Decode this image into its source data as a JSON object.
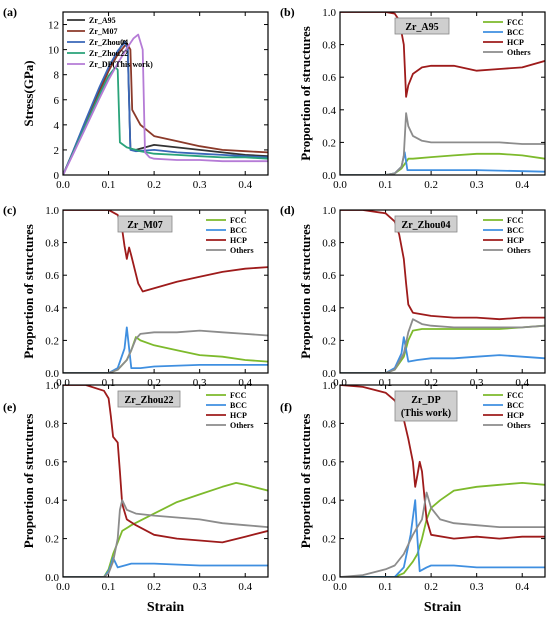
{
  "colors": {
    "FCC": "#7dba2c",
    "BCC": "#3f8fe0",
    "HCP": "#9e1b1b",
    "Others": "#8c8c8c",
    "Zr_A95": "#333333",
    "Zr_M07": "#8b3a2a",
    "Zr_Zhou04": "#3a67b8",
    "Zr_Zhou22": "#2aa37a",
    "Zr_DP": "#b57bd6"
  },
  "chart_data": [
    {
      "panel": "(a)",
      "type": "line",
      "xlabel": "",
      "ylabel": "Stress(GPa)",
      "xlim": [
        0,
        0.45
      ],
      "ylim": [
        0,
        13
      ],
      "xticks": [
        "0.0",
        "0.1",
        "0.2",
        "0.3",
        "0.4"
      ],
      "yticks": [
        "0",
        "2",
        "4",
        "6",
        "8",
        "10",
        "12"
      ],
      "legend_position": "top-left",
      "series": [
        {
          "name": "Zr_A95",
          "color_key": "Zr_A95",
          "x": [
            0,
            0.02,
            0.05,
            0.08,
            0.1,
            0.12,
            0.135,
            0.142,
            0.148,
            0.16,
            0.2,
            0.25,
            0.3,
            0.35,
            0.4,
            0.45
          ],
          "y": [
            0,
            1.7,
            4.3,
            6.8,
            8.4,
            9.8,
            10.7,
            10.2,
            2.1,
            2.0,
            2.4,
            2.2,
            2.0,
            1.8,
            1.6,
            1.5
          ]
        },
        {
          "name": "Zr_M07",
          "color_key": "Zr_M07",
          "x": [
            0,
            0.02,
            0.05,
            0.08,
            0.1,
            0.12,
            0.14,
            0.148,
            0.152,
            0.17,
            0.2,
            0.25,
            0.3,
            0.35,
            0.4,
            0.45
          ],
          "y": [
            0,
            1.6,
            4.1,
            6.6,
            8.3,
            9.6,
            10.5,
            10.0,
            5.2,
            4.0,
            3.1,
            2.7,
            2.3,
            2.0,
            1.9,
            1.8
          ]
        },
        {
          "name": "Zr_Zhou04",
          "color_key": "Zr_Zhou04",
          "x": [
            0,
            0.02,
            0.05,
            0.08,
            0.1,
            0.12,
            0.136,
            0.142,
            0.148,
            0.16,
            0.2,
            0.25,
            0.3,
            0.35,
            0.4,
            0.45
          ],
          "y": [
            0,
            1.7,
            4.4,
            7.0,
            8.6,
            9.9,
            10.6,
            10.0,
            2.0,
            1.9,
            2.0,
            1.8,
            1.7,
            1.6,
            1.5,
            1.4
          ]
        },
        {
          "name": "Zr_Zhou22",
          "color_key": "Zr_Zhou22",
          "x": [
            0,
            0.02,
            0.05,
            0.08,
            0.1,
            0.115,
            0.12,
            0.125,
            0.14,
            0.17,
            0.2,
            0.25,
            0.3,
            0.35,
            0.4,
            0.45
          ],
          "y": [
            0,
            1.6,
            4.0,
            6.4,
            7.9,
            8.6,
            8.4,
            2.6,
            2.2,
            1.9,
            1.7,
            1.6,
            1.5,
            1.4,
            1.4,
            1.3
          ]
        },
        {
          "name": "Zr_DP(This work)",
          "color_key": "Zr_DP",
          "x": [
            0,
            0.02,
            0.05,
            0.08,
            0.1,
            0.12,
            0.14,
            0.155,
            0.165,
            0.175,
            0.18,
            0.19,
            0.2,
            0.25,
            0.3,
            0.35,
            0.4,
            0.45
          ],
          "y": [
            0,
            1.5,
            3.8,
            6.1,
            7.6,
            8.9,
            10.1,
            10.9,
            11.2,
            10.0,
            1.8,
            1.4,
            1.3,
            1.2,
            1.2,
            1.1,
            1.1,
            1.1
          ]
        }
      ]
    },
    {
      "panel": "(b)",
      "type": "line",
      "badge": "Zr_A95",
      "xlabel": "",
      "ylabel": "Proportion of structures",
      "xlim": [
        0,
        0.45
      ],
      "ylim": [
        0,
        1.0
      ],
      "xticks": [
        "0.0",
        "0.1",
        "0.2",
        "0.3",
        "0.4"
      ],
      "yticks": [
        "0.0",
        "0.2",
        "0.4",
        "0.6",
        "0.8",
        "1.0"
      ],
      "legend_position": "top-right",
      "series": [
        {
          "name": "FCC",
          "color_key": "FCC",
          "x": [
            0,
            0.1,
            0.12,
            0.135,
            0.145,
            0.15,
            0.16,
            0.2,
            0.25,
            0.3,
            0.35,
            0.4,
            0.45
          ],
          "y": [
            0,
            0,
            0.01,
            0.04,
            0.08,
            0.1,
            0.1,
            0.11,
            0.12,
            0.13,
            0.13,
            0.12,
            0.1
          ]
        },
        {
          "name": "BCC",
          "color_key": "BCC",
          "x": [
            0,
            0.1,
            0.12,
            0.135,
            0.142,
            0.148,
            0.16,
            0.2,
            0.3,
            0.45
          ],
          "y": [
            0,
            0,
            0.01,
            0.05,
            0.14,
            0.03,
            0.03,
            0.03,
            0.03,
            0.02
          ]
        },
        {
          "name": "HCP",
          "color_key": "HCP",
          "x": [
            0,
            0.1,
            0.12,
            0.13,
            0.14,
            0.145,
            0.15,
            0.16,
            0.18,
            0.2,
            0.25,
            0.3,
            0.35,
            0.4,
            0.45
          ],
          "y": [
            1.0,
            1.0,
            0.99,
            0.95,
            0.8,
            0.48,
            0.55,
            0.62,
            0.66,
            0.67,
            0.67,
            0.64,
            0.65,
            0.66,
            0.7
          ]
        },
        {
          "name": "Others",
          "color_key": "Others",
          "x": [
            0,
            0.1,
            0.12,
            0.135,
            0.14,
            0.145,
            0.15,
            0.16,
            0.18,
            0.2,
            0.25,
            0.3,
            0.35,
            0.4,
            0.45
          ],
          "y": [
            0,
            0,
            0.01,
            0.05,
            0.12,
            0.38,
            0.3,
            0.24,
            0.21,
            0.2,
            0.2,
            0.2,
            0.2,
            0.19,
            0.19
          ]
        }
      ]
    },
    {
      "panel": "(c)",
      "type": "line",
      "badge": "Zr_M07",
      "xlabel": "",
      "ylabel": "Proportion of structures",
      "xlim": [
        0,
        0.45
      ],
      "ylim": [
        0,
        1.0
      ],
      "xticks": [
        "0.0",
        "0.1",
        "0.2",
        "0.3",
        "0.4"
      ],
      "yticks": [
        "0.0",
        "0.2",
        "0.4",
        "0.6",
        "0.8",
        "1.0"
      ],
      "legend_position": "top-right",
      "series": [
        {
          "name": "FCC",
          "color_key": "FCC",
          "x": [
            0,
            0.1,
            0.12,
            0.14,
            0.15,
            0.16,
            0.17,
            0.2,
            0.25,
            0.3,
            0.35,
            0.4,
            0.45
          ],
          "y": [
            0,
            0,
            0.02,
            0.08,
            0.14,
            0.22,
            0.2,
            0.17,
            0.14,
            0.11,
            0.1,
            0.08,
            0.07
          ]
        },
        {
          "name": "BCC",
          "color_key": "BCC",
          "x": [
            0,
            0.1,
            0.12,
            0.135,
            0.14,
            0.15,
            0.17,
            0.2,
            0.3,
            0.45
          ],
          "y": [
            0,
            0,
            0.03,
            0.15,
            0.28,
            0.03,
            0.03,
            0.04,
            0.05,
            0.05
          ]
        },
        {
          "name": "HCP",
          "color_key": "HCP",
          "x": [
            0,
            0.1,
            0.12,
            0.13,
            0.135,
            0.14,
            0.145,
            0.15,
            0.165,
            0.175,
            0.2,
            0.25,
            0.3,
            0.35,
            0.4,
            0.45
          ],
          "y": [
            1.0,
            1.0,
            0.97,
            0.88,
            0.78,
            0.7,
            0.77,
            0.72,
            0.55,
            0.5,
            0.52,
            0.56,
            0.59,
            0.62,
            0.64,
            0.65
          ]
        },
        {
          "name": "Others",
          "color_key": "Others",
          "x": [
            0,
            0.1,
            0.12,
            0.14,
            0.15,
            0.16,
            0.17,
            0.2,
            0.25,
            0.3,
            0.35,
            0.4,
            0.45
          ],
          "y": [
            0,
            0,
            0.02,
            0.08,
            0.14,
            0.21,
            0.24,
            0.25,
            0.25,
            0.26,
            0.25,
            0.24,
            0.23
          ]
        }
      ]
    },
    {
      "panel": "(d)",
      "type": "line",
      "badge": "Zr_Zhou04",
      "xlabel": "",
      "ylabel": "Proportion of structures",
      "xlim": [
        0,
        0.45
      ],
      "ylim": [
        0,
        1.0
      ],
      "xticks": [
        "0.0",
        "0.1",
        "0.2",
        "0.3",
        "0.4"
      ],
      "yticks": [
        "0.0",
        "0.2",
        "0.4",
        "0.6",
        "0.8",
        "1.0"
      ],
      "legend_position": "top-right",
      "series": [
        {
          "name": "FCC",
          "color_key": "FCC",
          "x": [
            0,
            0.1,
            0.12,
            0.14,
            0.15,
            0.16,
            0.18,
            0.2,
            0.25,
            0.3,
            0.35,
            0.4,
            0.45
          ],
          "y": [
            0,
            0,
            0.02,
            0.1,
            0.2,
            0.26,
            0.27,
            0.27,
            0.27,
            0.27,
            0.27,
            0.28,
            0.29
          ]
        },
        {
          "name": "BCC",
          "color_key": "BCC",
          "x": [
            0,
            0.1,
            0.12,
            0.135,
            0.14,
            0.15,
            0.17,
            0.2,
            0.25,
            0.3,
            0.35,
            0.4,
            0.45
          ],
          "y": [
            0,
            0,
            0.03,
            0.12,
            0.22,
            0.07,
            0.08,
            0.09,
            0.09,
            0.1,
            0.11,
            0.1,
            0.09
          ]
        },
        {
          "name": "HCP",
          "color_key": "HCP",
          "x": [
            0,
            0.05,
            0.1,
            0.12,
            0.13,
            0.14,
            0.145,
            0.15,
            0.16,
            0.2,
            0.25,
            0.3,
            0.35,
            0.4,
            0.45
          ],
          "y": [
            1.0,
            1.0,
            0.98,
            0.93,
            0.85,
            0.7,
            0.55,
            0.42,
            0.37,
            0.35,
            0.34,
            0.34,
            0.33,
            0.34,
            0.34
          ]
        },
        {
          "name": "Others",
          "color_key": "Others",
          "x": [
            0,
            0.1,
            0.12,
            0.14,
            0.15,
            0.16,
            0.18,
            0.2,
            0.25,
            0.3,
            0.35,
            0.4,
            0.45
          ],
          "y": [
            0,
            0,
            0.02,
            0.12,
            0.25,
            0.33,
            0.3,
            0.29,
            0.28,
            0.28,
            0.28,
            0.28,
            0.29
          ]
        }
      ]
    },
    {
      "panel": "(e)",
      "type": "line",
      "badge": "Zr_Zhou22",
      "xlabel": "Strain",
      "ylabel": "Proportion of structures",
      "xlim": [
        0,
        0.45
      ],
      "ylim": [
        0,
        1.0
      ],
      "xticks": [
        "0.0",
        "0.1",
        "0.2",
        "0.3",
        "0.4"
      ],
      "yticks": [
        "0.0",
        "0.2",
        "0.4",
        "0.6",
        "0.8",
        "1.0"
      ],
      "legend_position": "top-right",
      "series": [
        {
          "name": "FCC",
          "color_key": "FCC",
          "x": [
            0,
            0.09,
            0.1,
            0.11,
            0.12,
            0.13,
            0.15,
            0.2,
            0.25,
            0.3,
            0.35,
            0.38,
            0.4,
            0.45
          ],
          "y": [
            0,
            0,
            0.04,
            0.12,
            0.18,
            0.24,
            0.27,
            0.33,
            0.39,
            0.43,
            0.47,
            0.49,
            0.48,
            0.45
          ]
        },
        {
          "name": "BCC",
          "color_key": "BCC",
          "x": [
            0,
            0.09,
            0.1,
            0.105,
            0.11,
            0.12,
            0.15,
            0.2,
            0.3,
            0.4,
            0.45
          ],
          "y": [
            0,
            0,
            0.03,
            0.06,
            0.1,
            0.05,
            0.07,
            0.07,
            0.06,
            0.06,
            0.06
          ]
        },
        {
          "name": "HCP",
          "color_key": "HCP",
          "x": [
            0,
            0.05,
            0.09,
            0.1,
            0.105,
            0.11,
            0.12,
            0.125,
            0.13,
            0.14,
            0.16,
            0.2,
            0.25,
            0.3,
            0.35,
            0.4,
            0.45
          ],
          "y": [
            1.0,
            1.0,
            0.97,
            0.93,
            0.84,
            0.73,
            0.7,
            0.55,
            0.38,
            0.3,
            0.27,
            0.22,
            0.2,
            0.19,
            0.18,
            0.21,
            0.24
          ]
        },
        {
          "name": "Others",
          "color_key": "Others",
          "x": [
            0,
            0.09,
            0.1,
            0.11,
            0.12,
            0.125,
            0.13,
            0.14,
            0.16,
            0.2,
            0.25,
            0.3,
            0.35,
            0.4,
            0.45
          ],
          "y": [
            0,
            0,
            0.02,
            0.08,
            0.2,
            0.35,
            0.4,
            0.35,
            0.33,
            0.32,
            0.31,
            0.3,
            0.28,
            0.27,
            0.26
          ]
        }
      ]
    },
    {
      "panel": "(f)",
      "type": "line",
      "badge": "Zr_DP\n(This work)",
      "xlabel": "Strain",
      "ylabel": "Proportion of structures",
      "xlim": [
        0,
        0.45
      ],
      "ylim": [
        0,
        1.0
      ],
      "xticks": [
        "0.0",
        "0.1",
        "0.2",
        "0.3",
        "0.4"
      ],
      "yticks": [
        "0.0",
        "0.2",
        "0.4",
        "0.6",
        "0.8",
        "1.0"
      ],
      "legend_position": "top-right",
      "series": [
        {
          "name": "FCC",
          "color_key": "FCC",
          "x": [
            0,
            0.12,
            0.14,
            0.16,
            0.17,
            0.18,
            0.19,
            0.2,
            0.22,
            0.25,
            0.3,
            0.35,
            0.4,
            0.45
          ],
          "y": [
            0,
            0,
            0.02,
            0.08,
            0.12,
            0.2,
            0.3,
            0.36,
            0.4,
            0.45,
            0.47,
            0.48,
            0.49,
            0.48
          ]
        },
        {
          "name": "BCC",
          "color_key": "BCC",
          "x": [
            0,
            0.12,
            0.14,
            0.155,
            0.165,
            0.17,
            0.175,
            0.19,
            0.2,
            0.25,
            0.3,
            0.35,
            0.4,
            0.45
          ],
          "y": [
            0,
            0,
            0.05,
            0.22,
            0.4,
            0.2,
            0.03,
            0.05,
            0.06,
            0.06,
            0.05,
            0.05,
            0.05,
            0.05
          ]
        },
        {
          "name": "HCP",
          "color_key": "HCP",
          "x": [
            0,
            0.05,
            0.1,
            0.12,
            0.14,
            0.15,
            0.16,
            0.165,
            0.17,
            0.175,
            0.18,
            0.19,
            0.2,
            0.25,
            0.3,
            0.35,
            0.4,
            0.45
          ],
          "y": [
            1.0,
            0.99,
            0.96,
            0.92,
            0.82,
            0.72,
            0.6,
            0.47,
            0.53,
            0.6,
            0.55,
            0.3,
            0.22,
            0.2,
            0.21,
            0.2,
            0.21,
            0.21
          ]
        },
        {
          "name": "Others",
          "color_key": "Others",
          "x": [
            0,
            0.05,
            0.1,
            0.12,
            0.14,
            0.16,
            0.17,
            0.18,
            0.19,
            0.2,
            0.22,
            0.25,
            0.3,
            0.35,
            0.4,
            0.45
          ],
          "y": [
            0,
            0.01,
            0.04,
            0.06,
            0.12,
            0.22,
            0.26,
            0.3,
            0.44,
            0.36,
            0.3,
            0.28,
            0.27,
            0.26,
            0.26,
            0.26
          ]
        }
      ]
    }
  ]
}
